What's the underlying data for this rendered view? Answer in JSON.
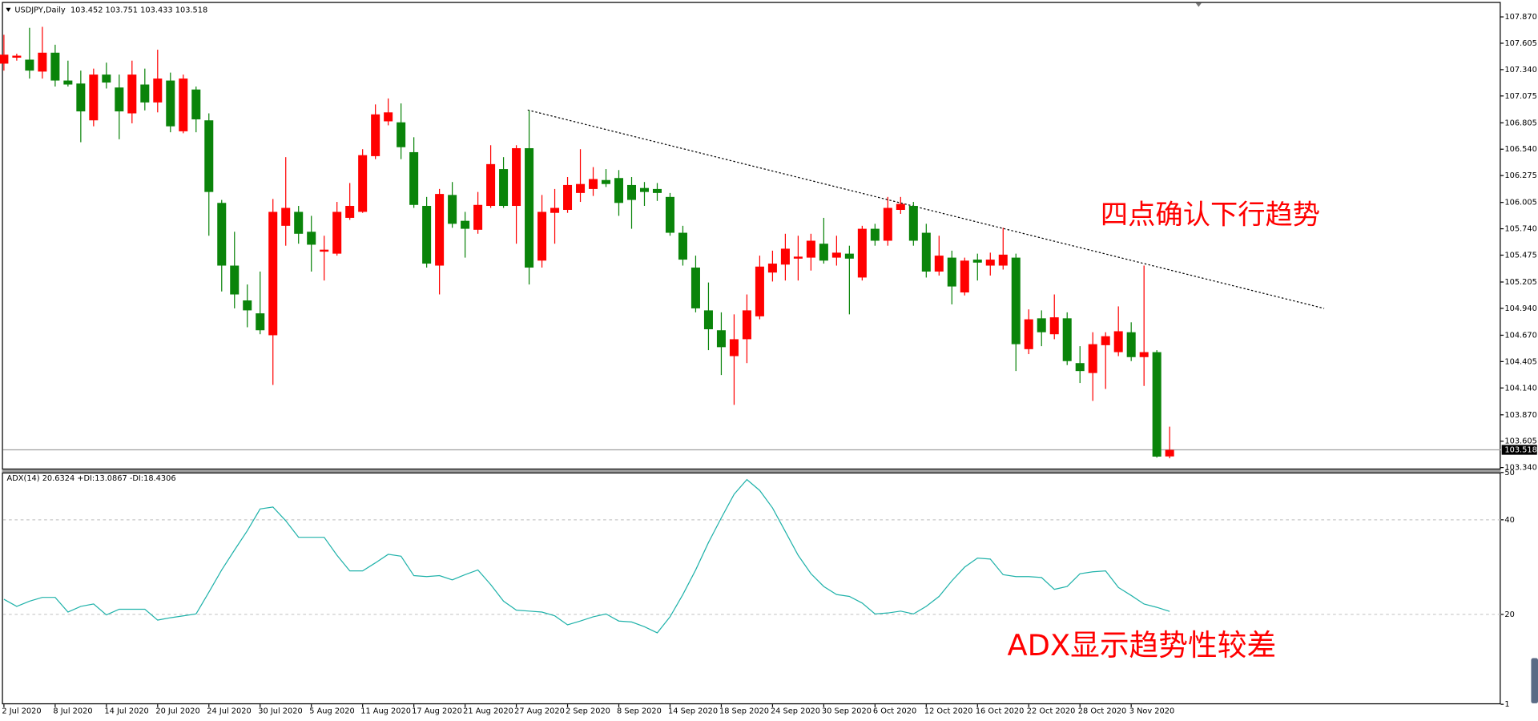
{
  "chart_data": [
    {
      "type": "candlestick",
      "title": "USDJPY,Daily  103.452 103.751 103.433 103.518",
      "annotation": "四点确认下行趋势",
      "categories": [
        "2 Jul 2020",
        null,
        null,
        null,
        "8 Jul 2020",
        null,
        null,
        null,
        "14 Jul 2020",
        null,
        null,
        null,
        "20 Jul 2020",
        null,
        null,
        null,
        "24 Jul 2020",
        null,
        null,
        null,
        "30 Jul 2020",
        null,
        null,
        null,
        "5 Aug 2020",
        null,
        null,
        null,
        "11 Aug 2020",
        null,
        null,
        null,
        "17 Aug 2020",
        null,
        null,
        null,
        "21 Aug 2020",
        null,
        null,
        null,
        "27 Aug 2020",
        null,
        null,
        null,
        "2 Sep 2020",
        null,
        null,
        null,
        "8 Sep 2020",
        null,
        null,
        null,
        "14 Sep 2020",
        null,
        null,
        null,
        "18 Sep 2020",
        null,
        null,
        null,
        "24 Sep 2020",
        null,
        null,
        null,
        "30 Sep 2020",
        null,
        null,
        null,
        "6 Oct 2020",
        null,
        null,
        null,
        "12 Oct 2020",
        null,
        null,
        null,
        "16 Oct 2020",
        null,
        null,
        null,
        "22 Oct 2020",
        null,
        null,
        null,
        "28 Oct 2020",
        null,
        null,
        null,
        "3 Nov 2020",
        null,
        null,
        null
      ],
      "open": [
        107.4,
        107.46,
        107.44,
        107.32,
        107.51,
        107.23,
        107.2,
        106.83,
        107.29,
        107.16,
        106.9,
        107.19,
        107.01,
        107.23,
        106.72,
        107.14,
        106.83,
        106.0,
        105.37,
        105.02,
        104.89,
        104.67,
        105.77,
        105.91,
        105.71,
        105.51,
        105.49,
        105.85,
        105.91,
        106.47,
        106.82,
        106.81,
        106.51,
        105.97,
        105.37,
        106.08,
        105.82,
        105.73,
        105.97,
        106.34,
        105.97,
        106.55,
        105.42,
        105.9,
        105.93,
        106.1,
        106.14,
        106.23,
        106.25,
        106.18,
        106.15,
        106.14,
        106.06,
        105.7,
        105.35,
        104.92,
        104.72,
        104.46,
        104.63,
        104.86,
        105.3,
        105.38,
        105.44,
        105.45,
        105.59,
        105.45,
        105.49,
        105.25,
        105.74,
        105.62,
        105.93,
        105.97,
        105.7,
        105.31,
        105.45,
        105.1,
        105.43,
        105.37,
        105.37,
        105.45,
        104.53,
        104.84,
        104.68,
        104.84,
        104.39,
        104.29,
        104.57,
        104.5,
        104.7,
        104.45,
        104.5,
        103.452
      ],
      "high": [
        107.69,
        107.5,
        107.76,
        107.77,
        107.59,
        107.43,
        107.33,
        107.35,
        107.41,
        107.29,
        107.43,
        107.35,
        107.54,
        107.31,
        107.29,
        107.17,
        106.9,
        106.03,
        105.71,
        105.18,
        105.31,
        106.04,
        106.46,
        105.97,
        105.87,
        105.67,
        106.01,
        106.2,
        106.54,
        106.99,
        107.05,
        107.0,
        106.66,
        106.06,
        106.14,
        106.21,
        105.91,
        106.11,
        106.58,
        106.46,
        106.58,
        106.93,
        106.08,
        106.14,
        106.26,
        106.54,
        106.36,
        106.34,
        106.33,
        106.26,
        106.21,
        106.2,
        106.1,
        105.77,
        105.47,
        105.2,
        104.9,
        104.88,
        105.08,
        105.47,
        105.52,
        105.69,
        105.67,
        105.69,
        105.85,
        105.67,
        105.57,
        105.77,
        105.79,
        106.06,
        106.06,
        106.01,
        105.79,
        105.67,
        105.52,
        105.45,
        105.49,
        105.5,
        105.75,
        105.49,
        104.93,
        104.92,
        105.08,
        104.9,
        104.56,
        104.7,
        104.7,
        104.96,
        104.8,
        105.37,
        104.52,
        103.751
      ],
      "low": [
        107.33,
        107.43,
        107.25,
        107.25,
        107.17,
        107.17,
        106.61,
        106.77,
        107.15,
        106.64,
        106.8,
        106.93,
        106.91,
        106.71,
        106.7,
        106.71,
        105.67,
        105.11,
        104.94,
        104.75,
        104.68,
        104.17,
        105.57,
        105.59,
        105.31,
        105.22,
        105.47,
        105.83,
        105.9,
        106.44,
        106.78,
        106.44,
        105.95,
        105.35,
        105.08,
        105.75,
        105.45,
        105.69,
        105.95,
        105.95,
        105.59,
        105.18,
        105.35,
        105.59,
        105.9,
        106.01,
        106.07,
        106.16,
        105.87,
        105.74,
        105.97,
        106.02,
        105.67,
        105.37,
        104.9,
        104.52,
        104.27,
        103.97,
        104.39,
        104.83,
        105.21,
        105.22,
        105.22,
        105.32,
        105.39,
        105.37,
        104.88,
        105.22,
        105.57,
        105.57,
        105.89,
        105.57,
        105.25,
        105.27,
        104.98,
        105.07,
        105.22,
        105.27,
        105.33,
        104.31,
        104.48,
        104.56,
        104.63,
        104.37,
        104.19,
        104.01,
        104.13,
        104.46,
        104.41,
        104.16,
        103.44,
        103.433
      ],
      "close": [
        107.49,
        107.48,
        107.33,
        107.51,
        107.23,
        107.19,
        106.92,
        107.29,
        107.21,
        106.92,
        107.29,
        107.01,
        107.25,
        106.77,
        107.25,
        106.84,
        106.11,
        105.37,
        105.08,
        104.92,
        104.72,
        105.91,
        105.95,
        105.69,
        105.58,
        105.53,
        105.91,
        105.97,
        106.48,
        106.89,
        106.91,
        106.56,
        105.98,
        105.39,
        106.09,
        105.79,
        105.74,
        105.98,
        106.39,
        105.97,
        106.55,
        105.35,
        105.91,
        105.95,
        106.18,
        106.19,
        106.24,
        106.19,
        106.0,
        106.03,
        106.11,
        106.1,
        105.7,
        105.43,
        104.94,
        104.73,
        104.55,
        104.63,
        104.92,
        105.36,
        105.39,
        105.54,
        105.46,
        105.62,
        105.42,
        105.5,
        105.44,
        105.74,
        105.62,
        105.95,
        105.99,
        105.62,
        105.31,
        105.47,
        105.16,
        105.42,
        105.4,
        105.43,
        105.48,
        104.58,
        104.83,
        104.7,
        104.85,
        104.41,
        104.31,
        104.58,
        104.66,
        104.71,
        104.45,
        104.5,
        103.45,
        103.518
      ],
      "up_color": "#ff0000",
      "down_color": "#0a840a",
      "current_price": {
        "value": 103.518,
        "label": "103.518"
      },
      "ylim": [
        103.32,
        108.01
      ],
      "yticks": [
        {
          "value": 107.87,
          "label": "107.870"
        },
        107.605,
        {
          "value": 107.34,
          "label": "107.340"
        },
        107.075,
        106.805,
        {
          "value": 106.54,
          "label": "106.540"
        },
        106.275,
        106.005,
        {
          "value": 105.74,
          "label": "105.740"
        },
        105.475,
        105.205,
        {
          "value": 104.94,
          "label": "104.940"
        },
        {
          "value": 104.67,
          "label": "104.670"
        },
        104.405,
        {
          "value": 104.14,
          "label": "104.140"
        },
        {
          "value": 103.87,
          "label": "103.870"
        },
        103.605,
        {
          "value": 103.34,
          "label": "103.340"
        }
      ]
    },
    {
      "type": "line",
      "title": "ADX(14) 20.6324 +DI:13.0867 -DI:18.4306",
      "annotation": "ADX显示趋势性较差",
      "values": [
        23.2,
        21.7,
        22.8,
        23.6,
        23.6,
        20.5,
        21.7,
        22.2,
        19.9,
        21.1,
        21.1,
        21.1,
        18.8,
        19.3,
        19.7,
        20.1,
        24.7,
        29.4,
        33.6,
        37.7,
        42.3,
        42.7,
        39.8,
        36.3,
        36.3,
        36.3,
        32.5,
        29.2,
        29.2,
        30.9,
        32.7,
        32.3,
        28.2,
        28.0,
        28.2,
        27.3,
        28.4,
        29.4,
        26.3,
        22.8,
        20.9,
        20.7,
        20.5,
        19.7,
        17.8,
        18.6,
        19.5,
        20.1,
        18.6,
        18.4,
        17.4,
        16.1,
        19.5,
        24.2,
        29.4,
        35.2,
        40.4,
        45.4,
        48.5,
        46.2,
        42.5,
        37.5,
        32.5,
        28.6,
        25.9,
        24.2,
        23.8,
        22.4,
        20.1,
        20.3,
        20.7,
        20.1,
        21.7,
        23.8,
        27.1,
        30.0,
        31.9,
        31.7,
        28.4,
        28.0,
        28.0,
        27.8,
        25.3,
        25.9,
        28.6,
        29.0,
        29.2,
        25.7,
        24.0,
        22.2,
        21.5,
        20.6324
      ],
      "color": "#20b2aa",
      "ylim": [
        1,
        50
      ],
      "yticks": [
        1,
        20,
        40,
        50
      ],
      "grid": true
    }
  ]
}
